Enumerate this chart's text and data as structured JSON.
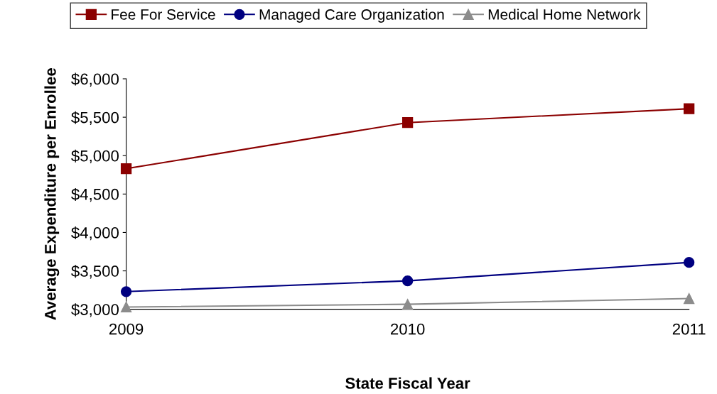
{
  "chart_data": {
    "type": "line",
    "xlabel": "State Fiscal Year",
    "ylabel": "Average Expenditure per Enrollee",
    "x": [
      2009,
      2010,
      2011
    ],
    "xlim": [
      2009,
      2011
    ],
    "xticks": [
      2009,
      2010,
      2011
    ],
    "ylim": [
      3000,
      6000
    ],
    "yticks": [
      {
        "value": 3000,
        "label": "$3,000"
      },
      {
        "value": 3500,
        "label": "$3,500"
      },
      {
        "value": 4000,
        "label": "$4,000"
      },
      {
        "value": 4500,
        "label": "$4,500"
      },
      {
        "value": 5000,
        "label": "$5,000"
      },
      {
        "value": 5500,
        "label": "$5,500"
      },
      {
        "value": 6000,
        "label": "$6,000"
      }
    ],
    "grid": false,
    "legend": "top",
    "series": [
      {
        "name": "Fee For Service",
        "color": "#8b0000",
        "marker": "square",
        "values": [
          4830,
          5430,
          5610
        ]
      },
      {
        "name": "Managed Care Organization",
        "color": "#000080",
        "marker": "circle",
        "values": [
          3230,
          3370,
          3610
        ]
      },
      {
        "name": "Medical Home Network",
        "color": "#8c8c8c",
        "marker": "triangle",
        "values": [
          3030,
          3065,
          3140
        ]
      }
    ]
  }
}
